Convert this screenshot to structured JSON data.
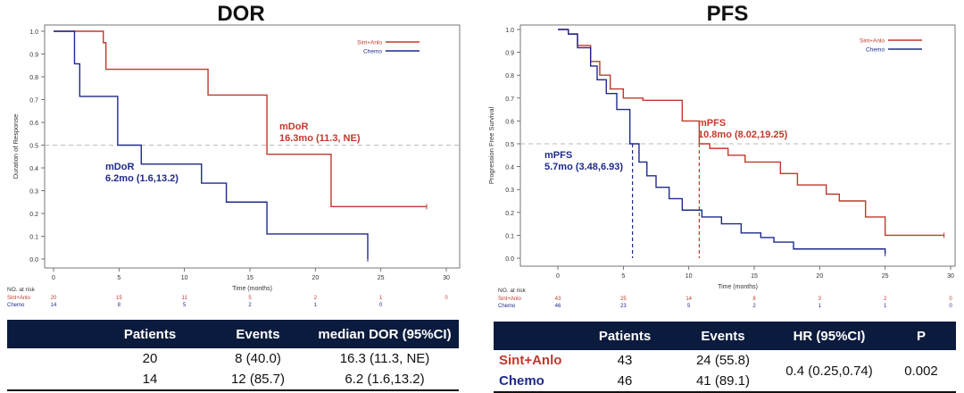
{
  "colors": {
    "sint": "#c0392b",
    "chemo": "#1f2a8a",
    "header": "#0b1b3d",
    "axis": "#444444"
  },
  "dor": {
    "title": "DOR",
    "table": {
      "headers": [
        "Patients",
        "Events",
        "median DOR (95%CI)"
      ],
      "rows": [
        [
          "20",
          "8 (40.0)",
          "16.3 (11.3, NE)"
        ],
        [
          "14",
          "12 (85.7)",
          "6.2 (1.6,13.2)"
        ]
      ]
    }
  },
  "pfs": {
    "title": "PFS",
    "table": {
      "headers": [
        "Patients",
        "Events",
        "HR (95%CI)",
        "P"
      ],
      "rows": [
        {
          "label": "Sint+Anlo",
          "patients": "43",
          "events": "24 (55.8)"
        },
        {
          "label": "Chemo",
          "patients": "46",
          "events": "41 (89.1)"
        }
      ],
      "hr": "0.4 (0.25,0.74)",
      "p": "0.002"
    }
  },
  "chart_data": [
    {
      "type": "line",
      "ylabel": "Duration of Response",
      "xlabel": "Time (months)",
      "xlim": [
        0,
        30
      ],
      "ylim": [
        0,
        1
      ],
      "xticks": [
        0,
        5,
        10,
        15,
        20,
        25,
        30
      ],
      "yticks": [
        0.0,
        0.1,
        0.2,
        0.3,
        0.4,
        0.5,
        0.6,
        0.7,
        0.8,
        0.9,
        1.0
      ],
      "reference_line_y": 0.5,
      "legend_position": "top-right",
      "series": [
        {
          "name": "Sint+Anlo",
          "color": "#c0392b",
          "x": [
            0,
            2.3,
            3.8,
            4.0,
            11.3,
            11.8,
            16.3,
            21.2,
            28.5
          ],
          "y": [
            1.0,
            1.0,
            0.95,
            0.833,
            0.833,
            0.72,
            0.46,
            0.23,
            0.23
          ]
        },
        {
          "name": "Chemo",
          "color": "#1f2a8a",
          "x": [
            0,
            1.5,
            1.6,
            2.0,
            4.9,
            6.7,
            11.3,
            13.2,
            16.3,
            24.0
          ],
          "y": [
            1.0,
            1.0,
            0.857,
            0.714,
            0.5,
            0.417,
            0.333,
            0.25,
            0.11,
            0.0
          ]
        }
      ],
      "annotations": [
        {
          "series": "Sint+Anlo",
          "text": [
            "mDoR",
            "16.3mo (11.3, NE)"
          ]
        },
        {
          "series": "Chemo",
          "text": [
            "mDoR",
            "6.2mo (1.6,13.2)"
          ]
        }
      ],
      "risk_table": {
        "label": "NO. at risk",
        "x": [
          0,
          5,
          10,
          15,
          20,
          25,
          30
        ],
        "rows": [
          {
            "name": "Sint+Anlo",
            "values": [
              "20",
              "15",
              "11",
              "5",
              "2",
              "1",
              "0"
            ]
          },
          {
            "name": "Chemo",
            "values": [
              "14",
              "8",
              "5",
              "2",
              "1",
              "0",
              ""
            ]
          }
        ]
      }
    },
    {
      "type": "line",
      "ylabel": "Progression Free Survival",
      "xlabel": "Time (months)",
      "xlim": [
        0,
        30
      ],
      "ylim": [
        0,
        1
      ],
      "xticks": [
        0,
        5,
        10,
        15,
        20,
        25,
        30
      ],
      "yticks": [
        0.0,
        0.1,
        0.2,
        0.3,
        0.4,
        0.5,
        0.6,
        0.7,
        0.8,
        0.9,
        1.0
      ],
      "reference_line_y": 0.5,
      "legend_position": "top-right",
      "series": [
        {
          "name": "Sint+Anlo",
          "color": "#c0392b",
          "x": [
            0,
            0.8,
            1.5,
            2.5,
            3.2,
            4.0,
            5.0,
            5.8,
            6.5,
            8.0,
            9.5,
            10.8,
            11.6,
            13.0,
            14.3,
            17.0,
            18.3,
            20.5,
            21.5,
            23.5,
            25.0,
            29.5
          ],
          "y": [
            1.0,
            0.98,
            0.93,
            0.86,
            0.8,
            0.74,
            0.7,
            0.7,
            0.69,
            0.69,
            0.6,
            0.5,
            0.48,
            0.45,
            0.42,
            0.37,
            0.32,
            0.28,
            0.25,
            0.18,
            0.1,
            0.1
          ]
        },
        {
          "name": "Chemo",
          "color": "#1f2a8a",
          "x": [
            0,
            0.8,
            1.5,
            2.5,
            3.0,
            3.7,
            4.5,
            5.5,
            6.2,
            6.8,
            7.5,
            8.5,
            9.5,
            11.0,
            12.5,
            14.0,
            15.5,
            16.5,
            18.0,
            25.0
          ],
          "y": [
            1.0,
            0.98,
            0.92,
            0.84,
            0.78,
            0.72,
            0.65,
            0.5,
            0.42,
            0.36,
            0.31,
            0.26,
            0.21,
            0.18,
            0.15,
            0.11,
            0.09,
            0.07,
            0.04,
            0.02
          ]
        }
      ],
      "median_lines_x": [
        5.7,
        10.8
      ],
      "annotations": [
        {
          "series": "Sint+Anlo",
          "text": [
            "mPFS",
            "10.8mo (8.02,19.25)"
          ]
        },
        {
          "series": "Chemo",
          "text": [
            "mPFS",
            "5.7mo (3.48,6.93)"
          ]
        }
      ],
      "risk_table": {
        "label": "NO. at risk",
        "x": [
          0,
          5,
          10,
          15,
          20,
          25,
          30
        ],
        "rows": [
          {
            "name": "Sint+Anlo",
            "values": [
              "43",
              "25",
              "14",
              "8",
              "3",
              "2",
              "0"
            ]
          },
          {
            "name": "Chemo",
            "values": [
              "46",
              "23",
              "5",
              "2",
              "1",
              "1",
              "0"
            ]
          }
        ]
      }
    }
  ]
}
